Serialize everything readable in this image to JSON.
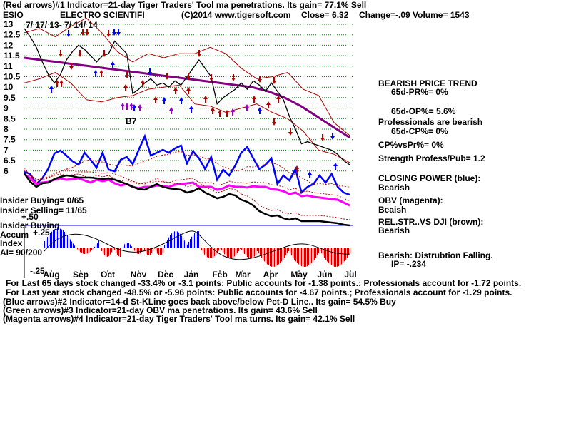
{
  "header": {
    "line1": "(Red arrows)#1 Indicator=21-day Tiger Traders' Tool ma penetrations. Its gain= 77.1% Sell",
    "ticker": "ESIO",
    "company": "ELECTRO SCIENTIFI",
    "copyright": "(C)2014 www.tigersoft.com",
    "close": "Close=  6.32",
    "change": "Change=-.09 Volume= 1543"
  },
  "date_note": "7/ 17/ 13- 7/ 14/ 14",
  "b7_label": "B7",
  "right_panel": {
    "lines": [
      "BEARISH PRICE TREND",
      "65d-PR%= 0%",
      "65d-OP%= 5.6%",
      "Professionals are bearish",
      "65d-CP%= 0%",
      "CP%vsPr%=  0%",
      "Strength Profess/Pub= 1.2",
      "CLOSING POWER (blue):",
      "Bearish",
      "OBV (magenta):",
      "Beaish",
      "REL.STR..VS DJI (brown):",
      "Bearish",
      "Bearish: Distrubtion Falling.",
      "IP= -.234"
    ]
  },
  "left_panel": {
    "insider_buying_count": "Insider Buying= 0/65",
    "insider_selling_count": "Insider Selling= 11/65",
    "mid_axis": "+.50",
    "insider_buying": "Insider Buying",
    "accum_index": "Accum",
    "accum_plus": "+.25",
    "index_word": "Index",
    "ai": "AI= 90/200",
    "minus25": "-.25"
  },
  "footer": {
    "lines": [
      "For Last 65 days stock changed -33.4% or -3.1 points:  Public accounts for -1.38 points.;  Professionals account for -1.72 points.",
      "For Last year stock changed -48.5% or -5.96 points:  Public accounts for -4.67 points.;  Professionals account for -1.29 points.",
      "(Blue arrows)#2 Indicator=14-d St-KLine goes back above/below Pct-D Line..  Its gain= 54.5% Buy",
      "(Green arrows)#3 Indicator=21-day OBV ma penetrations. Its gain= 43.6% Sell",
      "(Magenta arrows)#4 Indicator=21-day Tiger Traders' Tool ma turns. Its gain= 42.1% Sell"
    ]
  },
  "colors": {
    "price": "#000000",
    "band": "#b00000",
    "ma65": "#800080",
    "closing_power": "#0000ff",
    "obv": "#ff00ff",
    "rel_strength": "#000000",
    "accum_pos": "#0000cc",
    "accum_neg": "#cc0000",
    "grid": "#008000",
    "hline": "#0000ff"
  },
  "chart_data": {
    "type": "line",
    "title": "ELECTRO SCIENTIFI",
    "y_ticks": [
      "13",
      "12.5",
      "12",
      "11.5",
      "11",
      "10.5",
      "10",
      "9.5",
      "9",
      "8.5",
      "8",
      "7.5",
      "7",
      "6.5",
      "6"
    ],
    "ylim": [
      6,
      13
    ],
    "x_ticks": [
      "Aug",
      "Sep",
      "Oct",
      "Nov",
      "Dec",
      "Jan",
      "Feb",
      "Mar",
      "Apr",
      "May",
      "Jun",
      "Jul"
    ],
    "price_series": {
      "name": "Price",
      "values": [
        12.8,
        12.4,
        11.9,
        11.2,
        10.6,
        10.2,
        10.6,
        11.3,
        11.7,
        12.0,
        11.8,
        11.5,
        11.2,
        11.5,
        11.6,
        12.2,
        11.9,
        11.6,
        9.7,
        9.9,
        10.2,
        10.4,
        10.1,
        10.2,
        10.0,
        10.3,
        10.1,
        10.5,
        10.9,
        11.3,
        10.9,
        10.5,
        9.2,
        9.5,
        9.7,
        9.9,
        10.2,
        9.9,
        10.3,
        10.1,
        9.8,
        10.2,
        9.8,
        9.4,
        8.6,
        8.0,
        7.3,
        7.4,
        7.3,
        7.2,
        7.1,
        7.0,
        6.8,
        6.5,
        6.3
      ]
    },
    "ma65": {
      "name": "65-day MA",
      "values": [
        11.4,
        11.3,
        11.2,
        11.1,
        11.0,
        10.9,
        10.8,
        10.7,
        10.6,
        10.5,
        10.4,
        10.3,
        10.2,
        10.1,
        10.0,
        9.8,
        9.5,
        9.1,
        8.6,
        8.1,
        7.6
      ]
    },
    "upper_band": {
      "name": "Upper band",
      "values": [
        12.6,
        12.8,
        12.4,
        12.9,
        13.3,
        12.6,
        11.7,
        11.2,
        11.6,
        11.4,
        11.6,
        11.6,
        11.9,
        11.6,
        10.9,
        10.4,
        10.5,
        10.7,
        9.9,
        9.6,
        8.3,
        7.7
      ]
    },
    "lower_band": {
      "name": "Lower band",
      "values": [
        10.2,
        10.4,
        10.7,
        10.2,
        9.4,
        9.3,
        9.5,
        9.6,
        9.9,
        10.0,
        10.1,
        9.2,
        9.1,
        8.8,
        9.0,
        9.2,
        8.8,
        8.5,
        7.9,
        7.0,
        6.8,
        6.4
      ]
    },
    "red_arrows": [
      "Aug",
      "Sep",
      "Oct",
      "Dec",
      "Jan",
      "Mar",
      "Apr",
      "Jun"
    ],
    "blue_arrows": [
      "Aug",
      "Sep",
      "Oct",
      "Nov",
      "Dec",
      "Jan",
      "Feb",
      "Apr",
      "May",
      "Jun"
    ],
    "magenta_arrows": [
      "Nov",
      "Dec",
      "Mar"
    ]
  }
}
